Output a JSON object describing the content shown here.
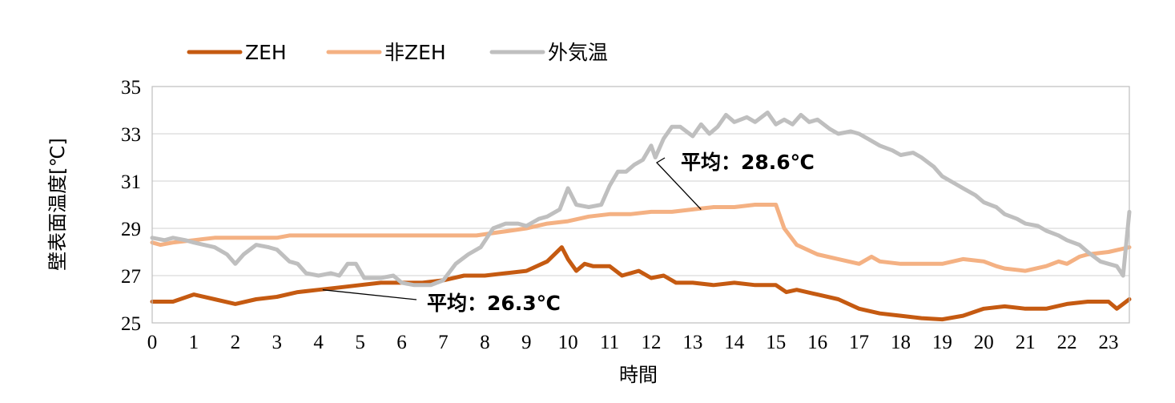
{
  "chart_data": {
    "type": "line",
    "xlabel": "時間",
    "ylabel": "壁表面温度[℃]",
    "xlim": [
      0,
      23.5
    ],
    "ylim": [
      25,
      35
    ],
    "xticks": [
      "0",
      "1",
      "2",
      "3",
      "4",
      "5",
      "6",
      "7",
      "8",
      "9",
      "10",
      "11",
      "12",
      "13",
      "14",
      "15",
      "16",
      "17",
      "18",
      "19",
      "20",
      "21",
      "22",
      "23"
    ],
    "yticks": [
      "25",
      "27",
      "29",
      "31",
      "33",
      "35"
    ],
    "grid": "horizontal",
    "legend_position": "top-left",
    "series": [
      {
        "name": "ZEH",
        "color": "#C55A11",
        "points": [
          [
            0,
            25.9
          ],
          [
            0.5,
            25.9
          ],
          [
            1,
            26.2
          ],
          [
            1.5,
            26.0
          ],
          [
            2,
            25.8
          ],
          [
            2.5,
            26.0
          ],
          [
            3,
            26.1
          ],
          [
            3.5,
            26.3
          ],
          [
            4,
            26.4
          ],
          [
            4.5,
            26.5
          ],
          [
            5,
            26.6
          ],
          [
            5.5,
            26.7
          ],
          [
            6,
            26.7
          ],
          [
            6.5,
            26.7
          ],
          [
            7,
            26.8
          ],
          [
            7.5,
            27.0
          ],
          [
            8,
            27.0
          ],
          [
            8.5,
            27.1
          ],
          [
            9,
            27.2
          ],
          [
            9.5,
            27.6
          ],
          [
            9.85,
            28.2
          ],
          [
            10,
            27.7
          ],
          [
            10.2,
            27.2
          ],
          [
            10.4,
            27.5
          ],
          [
            10.6,
            27.4
          ],
          [
            11,
            27.4
          ],
          [
            11.3,
            27.0
          ],
          [
            11.7,
            27.2
          ],
          [
            12,
            26.9
          ],
          [
            12.3,
            27.0
          ],
          [
            12.6,
            26.7
          ],
          [
            13,
            26.7
          ],
          [
            13.5,
            26.6
          ],
          [
            14,
            26.7
          ],
          [
            14.5,
            26.6
          ],
          [
            15,
            26.6
          ],
          [
            15.25,
            26.3
          ],
          [
            15.5,
            26.4
          ],
          [
            16,
            26.2
          ],
          [
            16.5,
            26.0
          ],
          [
            17,
            25.6
          ],
          [
            17.5,
            25.4
          ],
          [
            18,
            25.3
          ],
          [
            18.5,
            25.2
          ],
          [
            19,
            25.15
          ],
          [
            19.5,
            25.3
          ],
          [
            20,
            25.6
          ],
          [
            20.5,
            25.7
          ],
          [
            21,
            25.6
          ],
          [
            21.5,
            25.6
          ],
          [
            22,
            25.8
          ],
          [
            22.5,
            25.9
          ],
          [
            23,
            25.9
          ],
          [
            23.2,
            25.6
          ],
          [
            23.5,
            26.0
          ]
        ]
      },
      {
        "name": "非ZEH",
        "color": "#F4B183",
        "points": [
          [
            0,
            28.4
          ],
          [
            0.2,
            28.3
          ],
          [
            0.5,
            28.4
          ],
          [
            1,
            28.5
          ],
          [
            1.5,
            28.6
          ],
          [
            2,
            28.6
          ],
          [
            3,
            28.6
          ],
          [
            3.3,
            28.7
          ],
          [
            4,
            28.7
          ],
          [
            5,
            28.7
          ],
          [
            6,
            28.7
          ],
          [
            7,
            28.7
          ],
          [
            7.8,
            28.7
          ],
          [
            8.2,
            28.8
          ],
          [
            8.6,
            28.9
          ],
          [
            9,
            29.0
          ],
          [
            9.5,
            29.2
          ],
          [
            10,
            29.3
          ],
          [
            10.5,
            29.5
          ],
          [
            11,
            29.6
          ],
          [
            11.5,
            29.6
          ],
          [
            12,
            29.7
          ],
          [
            12.5,
            29.7
          ],
          [
            13,
            29.8
          ],
          [
            13.5,
            29.9
          ],
          [
            14,
            29.9
          ],
          [
            14.5,
            30.0
          ],
          [
            15,
            30.0
          ],
          [
            15.2,
            29.0
          ],
          [
            15.5,
            28.3
          ],
          [
            16,
            27.9
          ],
          [
            16.5,
            27.7
          ],
          [
            17,
            27.5
          ],
          [
            17.3,
            27.8
          ],
          [
            17.5,
            27.6
          ],
          [
            18,
            27.5
          ],
          [
            18.5,
            27.5
          ],
          [
            19,
            27.5
          ],
          [
            19.5,
            27.7
          ],
          [
            20,
            27.6
          ],
          [
            20.3,
            27.4
          ],
          [
            20.5,
            27.3
          ],
          [
            21,
            27.2
          ],
          [
            21.5,
            27.4
          ],
          [
            21.8,
            27.6
          ],
          [
            22,
            27.5
          ],
          [
            22.3,
            27.8
          ],
          [
            22.5,
            27.9
          ],
          [
            23,
            28.0
          ],
          [
            23.5,
            28.2
          ]
        ]
      },
      {
        "name": "外気温",
        "color": "#BFBFBF",
        "points": [
          [
            0,
            28.6
          ],
          [
            0.3,
            28.5
          ],
          [
            0.5,
            28.6
          ],
          [
            0.8,
            28.5
          ],
          [
            1,
            28.4
          ],
          [
            1.5,
            28.2
          ],
          [
            1.8,
            27.9
          ],
          [
            2,
            27.5
          ],
          [
            2.2,
            27.9
          ],
          [
            2.5,
            28.3
          ],
          [
            2.8,
            28.2
          ],
          [
            3,
            28.1
          ],
          [
            3.3,
            27.6
          ],
          [
            3.5,
            27.5
          ],
          [
            3.7,
            27.1
          ],
          [
            4,
            27.0
          ],
          [
            4.3,
            27.1
          ],
          [
            4.5,
            27.0
          ],
          [
            4.7,
            27.5
          ],
          [
            4.9,
            27.5
          ],
          [
            5.1,
            26.9
          ],
          [
            5.5,
            26.9
          ],
          [
            5.8,
            27.0
          ],
          [
            6,
            26.7
          ],
          [
            6.3,
            26.6
          ],
          [
            6.7,
            26.6
          ],
          [
            7,
            26.8
          ],
          [
            7.3,
            27.5
          ],
          [
            7.6,
            27.9
          ],
          [
            7.9,
            28.2
          ],
          [
            8.2,
            29.0
          ],
          [
            8.5,
            29.2
          ],
          [
            8.8,
            29.2
          ],
          [
            9,
            29.1
          ],
          [
            9.3,
            29.4
          ],
          [
            9.5,
            29.5
          ],
          [
            9.8,
            29.8
          ],
          [
            10,
            30.7
          ],
          [
            10.2,
            30.0
          ],
          [
            10.5,
            29.9
          ],
          [
            10.8,
            30.0
          ],
          [
            11,
            30.8
          ],
          [
            11.2,
            31.4
          ],
          [
            11.4,
            31.4
          ],
          [
            11.6,
            31.7
          ],
          [
            11.8,
            31.9
          ],
          [
            12,
            32.5
          ],
          [
            12.1,
            32.0
          ],
          [
            12.3,
            32.8
          ],
          [
            12.5,
            33.3
          ],
          [
            12.7,
            33.3
          ],
          [
            13,
            32.9
          ],
          [
            13.2,
            33.4
          ],
          [
            13.4,
            33.0
          ],
          [
            13.6,
            33.3
          ],
          [
            13.8,
            33.8
          ],
          [
            14,
            33.5
          ],
          [
            14.3,
            33.7
          ],
          [
            14.5,
            33.5
          ],
          [
            14.8,
            33.9
          ],
          [
            15,
            33.4
          ],
          [
            15.2,
            33.6
          ],
          [
            15.4,
            33.4
          ],
          [
            15.6,
            33.8
          ],
          [
            15.8,
            33.5
          ],
          [
            16,
            33.6
          ],
          [
            16.3,
            33.2
          ],
          [
            16.5,
            33.0
          ],
          [
            16.8,
            33.1
          ],
          [
            17,
            33.0
          ],
          [
            17.3,
            32.7
          ],
          [
            17.5,
            32.5
          ],
          [
            17.8,
            32.3
          ],
          [
            18,
            32.1
          ],
          [
            18.3,
            32.2
          ],
          [
            18.5,
            32.0
          ],
          [
            18.8,
            31.6
          ],
          [
            19,
            31.2
          ],
          [
            19.3,
            30.9
          ],
          [
            19.5,
            30.7
          ],
          [
            19.8,
            30.4
          ],
          [
            20,
            30.1
          ],
          [
            20.3,
            29.9
          ],
          [
            20.5,
            29.6
          ],
          [
            20.8,
            29.4
          ],
          [
            21,
            29.2
          ],
          [
            21.3,
            29.1
          ],
          [
            21.5,
            28.9
          ],
          [
            21.8,
            28.7
          ],
          [
            22,
            28.5
          ],
          [
            22.3,
            28.3
          ],
          [
            22.5,
            28.0
          ],
          [
            22.8,
            27.6
          ],
          [
            23,
            27.5
          ],
          [
            23.2,
            27.4
          ],
          [
            23.35,
            27.0
          ],
          [
            23.5,
            29.7
          ]
        ]
      }
    ],
    "annotations": [
      {
        "text": "平均：26.3℃",
        "series": "ZEH",
        "x": 4.1,
        "y": 26.4
      },
      {
        "text": "平均：28.6℃",
        "series": "非ZEH",
        "x": 13.2,
        "y": 29.8
      }
    ]
  }
}
